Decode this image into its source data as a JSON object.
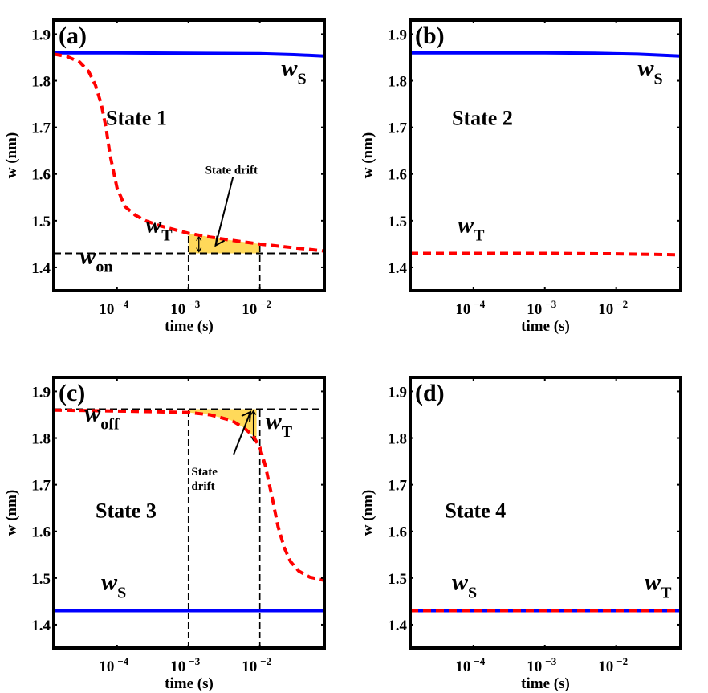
{
  "colors": {
    "ws": "#0000ff",
    "wt": "#ff0000",
    "drift_fill": "#ffd95a",
    "reference": "#000000"
  },
  "chart_data": [
    {
      "type": "line",
      "panel": "(a)",
      "state": "State 1",
      "xlabel": "time (s)",
      "ylabel": "w (nm)",
      "xscale": "log",
      "xlim": [
        1.3e-05,
        0.08
      ],
      "ylim": [
        1.35,
        1.93
      ],
      "xticks": [
        {
          "value": 0.0001,
          "base": "10",
          "exp": "−4"
        },
        {
          "value": 0.001,
          "base": "10",
          "exp": "−3"
        },
        {
          "value": 0.01,
          "base": "10",
          "exp": "−2"
        }
      ],
      "yticks": [
        "1.4",
        "1.5",
        "1.6",
        "1.7",
        "1.8",
        "1.9"
      ],
      "series": [
        {
          "name": "wS",
          "label": "w",
          "sub": "S",
          "style": "solid",
          "color": "#0000ff",
          "x": [
            1.3e-05,
            0.0001,
            0.001,
            0.01,
            0.03,
            0.08
          ],
          "y": [
            1.86,
            1.86,
            1.859,
            1.858,
            1.856,
            1.853
          ]
        },
        {
          "name": "wT",
          "label": "w",
          "sub": "T",
          "style": "dashed",
          "color": "#ff0000",
          "x": [
            1.3e-05,
            2e-05,
            3e-05,
            4e-05,
            5e-05,
            6e-05,
            7e-05,
            8e-05,
            0.0001,
            0.00013,
            0.00018,
            0.00025,
            0.0004,
            0.0007,
            0.001,
            0.002,
            0.004,
            0.01,
            0.03,
            0.08
          ],
          "y": [
            1.857,
            1.852,
            1.84,
            1.82,
            1.79,
            1.75,
            1.7,
            1.64,
            1.57,
            1.53,
            1.512,
            1.5,
            1.489,
            1.479,
            1.473,
            1.465,
            1.458,
            1.45,
            1.442,
            1.435
          ]
        }
      ],
      "reference_lines": [
        {
          "name": "won",
          "orientation": "horizontal",
          "value": 1.43,
          "label": "w",
          "sub": "on"
        },
        {
          "orientation": "vertical",
          "value": 0.001,
          "from": 1.35,
          "to": 1.473
        },
        {
          "orientation": "vertical",
          "value": 0.01,
          "from": 1.35,
          "to": 1.45
        }
      ],
      "drift_region": {
        "x_from": 0.001,
        "x_to": 0.01,
        "baseline": 1.43
      },
      "annotation": {
        "text": "State drift"
      },
      "labels": {
        "ws": {
          "x": 0.02,
          "y": 1.81
        },
        "wt": {
          "x": 0.00025,
          "y": 1.475
        },
        "won": {
          "x": 3e-05,
          "y": 1.408
        },
        "state": {
          "x": 7e-05,
          "y": 1.705
        },
        "drift_text": {
          "x": 0.004,
          "y": 1.6
        }
      }
    },
    {
      "type": "line",
      "panel": "(b)",
      "state": "State 2",
      "xlabel": "time (s)",
      "ylabel": "w (nm)",
      "xscale": "log",
      "xlim": [
        1.3e-05,
        0.08
      ],
      "ylim": [
        1.35,
        1.93
      ],
      "xticks": [
        {
          "value": 0.0001,
          "base": "10",
          "exp": "−4"
        },
        {
          "value": 0.001,
          "base": "10",
          "exp": "−3"
        },
        {
          "value": 0.01,
          "base": "10",
          "exp": "−2"
        }
      ],
      "yticks": [
        "1.4",
        "1.5",
        "1.6",
        "1.7",
        "1.8",
        "1.9"
      ],
      "series": [
        {
          "name": "wS",
          "label": "w",
          "sub": "S",
          "style": "solid",
          "color": "#0000ff",
          "x": [
            1.3e-05,
            0.0001,
            0.001,
            0.005,
            0.02,
            0.08
          ],
          "y": [
            1.86,
            1.86,
            1.86,
            1.859,
            1.857,
            1.853
          ]
        },
        {
          "name": "wT",
          "label": "w",
          "sub": "T",
          "style": "dashed",
          "color": "#ff0000",
          "x": [
            1.3e-05,
            0.0001,
            0.001,
            0.01,
            0.08
          ],
          "y": [
            1.43,
            1.43,
            1.43,
            1.429,
            1.427
          ]
        }
      ],
      "labels": {
        "ws": {
          "x": 0.02,
          "y": 1.81
        },
        "wt": {
          "x": 6e-05,
          "y": 1.475
        },
        "state": {
          "x": 5e-05,
          "y": 1.705
        }
      }
    },
    {
      "type": "line",
      "panel": "(c)",
      "state": "State 3",
      "xlabel": "time (s)",
      "ylabel": "w (nm)",
      "xscale": "log",
      "xlim": [
        1.3e-05,
        0.08
      ],
      "ylim": [
        1.35,
        1.93
      ],
      "xticks": [
        {
          "value": 0.0001,
          "base": "10",
          "exp": "−4"
        },
        {
          "value": 0.001,
          "base": "10",
          "exp": "−3"
        },
        {
          "value": 0.01,
          "base": "10",
          "exp": "−2"
        }
      ],
      "yticks": [
        "1.4",
        "1.5",
        "1.6",
        "1.7",
        "1.8",
        "1.9"
      ],
      "series": [
        {
          "name": "wS",
          "label": "w",
          "sub": "S",
          "style": "solid",
          "color": "#0000ff",
          "x": [
            1.3e-05,
            0.08
          ],
          "y": [
            1.43,
            1.43
          ]
        },
        {
          "name": "wT",
          "label": "w",
          "sub": "T",
          "style": "dashed",
          "color": "#ff0000",
          "x": [
            1.3e-05,
            0.0001,
            0.001,
            0.002,
            0.004,
            0.006,
            0.008,
            0.01,
            0.012,
            0.015,
            0.018,
            0.022,
            0.027,
            0.035,
            0.05,
            0.08
          ],
          "y": [
            1.86,
            1.858,
            1.855,
            1.85,
            1.838,
            1.822,
            1.805,
            1.78,
            1.74,
            1.67,
            1.61,
            1.565,
            1.535,
            1.515,
            1.502,
            1.495
          ]
        }
      ],
      "reference_lines": [
        {
          "name": "woff",
          "orientation": "horizontal",
          "value": 1.862,
          "label": "w",
          "sub": "off"
        },
        {
          "orientation": "vertical",
          "value": 0.001,
          "from": 1.35,
          "to": 1.862
        },
        {
          "orientation": "vertical",
          "value": 0.01,
          "from": 1.35,
          "to": 1.862
        }
      ],
      "drift_region": {
        "x_from": 0.001,
        "x_to": 0.009,
        "baseline": 1.862
      },
      "annotation": {
        "text_line1": "State",
        "text_line2": "drift"
      },
      "labels": {
        "ws": {
          "x": 6e-05,
          "y": 1.475
        },
        "wt": {
          "x": 0.012,
          "y": 1.82
        },
        "woff": {
          "x": 3.5e-05,
          "y": 1.836
        },
        "state": {
          "x": 5e-05,
          "y": 1.63
        },
        "drift_text": {
          "x": 0.0011,
          "y": 1.72
        }
      }
    },
    {
      "type": "line",
      "panel": "(d)",
      "state": "State 4",
      "xlabel": "time (s)",
      "ylabel": "w (nm)",
      "xscale": "log",
      "xlim": [
        1.3e-05,
        0.08
      ],
      "ylim": [
        1.35,
        1.93
      ],
      "xticks": [
        {
          "value": 0.0001,
          "base": "10",
          "exp": "−4"
        },
        {
          "value": 0.001,
          "base": "10",
          "exp": "−3"
        },
        {
          "value": 0.01,
          "base": "10",
          "exp": "−2"
        }
      ],
      "yticks": [
        "1.4",
        "1.5",
        "1.6",
        "1.7",
        "1.8",
        "1.9"
      ],
      "series": [
        {
          "name": "wS",
          "label": "w",
          "sub": "S",
          "style": "solid",
          "color": "#0000ff",
          "x": [
            1.3e-05,
            0.08
          ],
          "y": [
            1.43,
            1.43
          ]
        },
        {
          "name": "wT",
          "label": "w",
          "sub": "T",
          "style": "dashed",
          "color": "#ff0000",
          "x": [
            1.3e-05,
            0.08
          ],
          "y": [
            1.43,
            1.43
          ]
        }
      ],
      "labels": {
        "ws": {
          "x": 5e-05,
          "y": 1.475
        },
        "wt": {
          "x": 0.025,
          "y": 1.475
        },
        "state": {
          "x": 4e-05,
          "y": 1.63
        }
      }
    }
  ]
}
